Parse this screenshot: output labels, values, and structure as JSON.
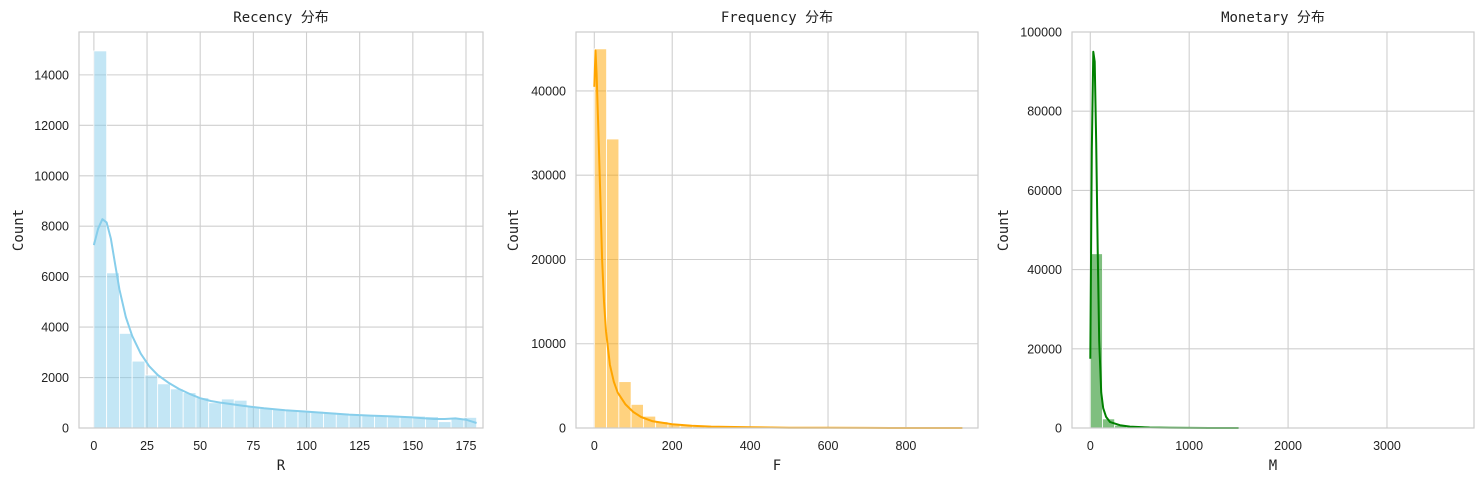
{
  "chart_data": [
    {
      "type": "bar",
      "title": "Recency 分布",
      "xlabel": "R",
      "ylabel": "Count",
      "color": "#87CEEB",
      "xlim": [
        -7,
        183
      ],
      "ylim": [
        0,
        15700
      ],
      "xticks": [
        0,
        25,
        50,
        75,
        100,
        125,
        150,
        175
      ],
      "yticks": [
        0,
        2000,
        4000,
        6000,
        8000,
        10000,
        12000,
        14000
      ],
      "grid": true,
      "bins": {
        "start": 0,
        "width": 6,
        "counts": [
          14950,
          6150,
          3750,
          2650,
          2100,
          1750,
          1550,
          1400,
          1200,
          1000,
          1150,
          1100,
          850,
          780,
          730,
          700,
          690,
          660,
          620,
          580,
          540,
          510,
          500,
          480,
          460,
          470,
          450,
          250,
          390,
          420
        ]
      },
      "kde": {
        "x": [
          0,
          2,
          4,
          6,
          8,
          10,
          12,
          15,
          18,
          22,
          26,
          30,
          35,
          40,
          45,
          50,
          55,
          60,
          65,
          70,
          80,
          90,
          100,
          110,
          120,
          130,
          140,
          150,
          155,
          160,
          165,
          170,
          175,
          178,
          180
        ],
        "y": [
          7250,
          7900,
          8280,
          8150,
          7500,
          6500,
          5500,
          4400,
          3650,
          2950,
          2450,
          2100,
          1800,
          1550,
          1350,
          1180,
          1070,
          1000,
          940,
          880,
          780,
          700,
          650,
          590,
          530,
          490,
          460,
          420,
          390,
          355,
          355,
          380,
          330,
          250,
          200
        ]
      }
    },
    {
      "type": "bar",
      "title": "Frequency 分布",
      "xlabel": "F",
      "ylabel": "Count",
      "color": "#FFA500",
      "xlim": [
        -47,
        985
      ],
      "ylim": [
        0,
        47000
      ],
      "xticks": [
        0,
        200,
        400,
        600,
        800
      ],
      "yticks": [
        0,
        10000,
        20000,
        30000,
        40000
      ],
      "grid": true,
      "bins": {
        "start": 0,
        "width": 31.5,
        "counts": [
          45000,
          34300,
          5500,
          2800,
          1400,
          750,
          420,
          260,
          160,
          110,
          80,
          60,
          45,
          35,
          25,
          20,
          15,
          12,
          10,
          8,
          6,
          5,
          4,
          3,
          3,
          2,
          2,
          1,
          1,
          1
        ]
      },
      "kde": {
        "x": [
          0,
          3,
          6,
          10,
          15,
          20,
          25,
          30,
          40,
          50,
          60,
          80,
          100,
          120,
          150,
          200,
          250,
          300,
          400,
          500,
          600,
          700,
          800,
          945
        ],
        "y": [
          40500,
          44800,
          42000,
          36000,
          28000,
          20000,
          15000,
          11500,
          7500,
          5500,
          4200,
          2800,
          1900,
          1300,
          800,
          450,
          260,
          170,
          80,
          40,
          20,
          10,
          5,
          2
        ]
      }
    },
    {
      "type": "bar",
      "title": "Monetary 分布",
      "xlabel": "M",
      "ylabel": "Count",
      "color": "#008000",
      "xlim": [
        -185,
        3880
      ],
      "ylim": [
        0,
        100000
      ],
      "xticks": [
        0,
        1000,
        2000,
        3000
      ],
      "yticks": [
        0,
        20000,
        40000,
        60000,
        80000,
        100000
      ],
      "grid": true,
      "bins": {
        "start": 0,
        "width": 123,
        "counts": [
          44000,
          2300,
          700,
          350,
          180,
          100,
          60,
          40,
          25,
          18,
          12,
          8,
          6,
          4,
          3,
          2,
          2,
          1,
          1,
          1,
          1,
          0,
          0,
          1,
          0,
          0,
          0,
          0,
          0,
          1
        ]
      },
      "kde": {
        "x": [
          0,
          15,
          30,
          45,
          60,
          75,
          90,
          110,
          130,
          160,
          200,
          300,
          400,
          600,
          800,
          1000,
          1200,
          1500
        ],
        "y": [
          17500,
          70000,
          95000,
          92500,
          72000,
          45000,
          22000,
          9000,
          5000,
          2800,
          1500,
          700,
          350,
          120,
          50,
          20,
          8,
          2
        ]
      }
    }
  ]
}
